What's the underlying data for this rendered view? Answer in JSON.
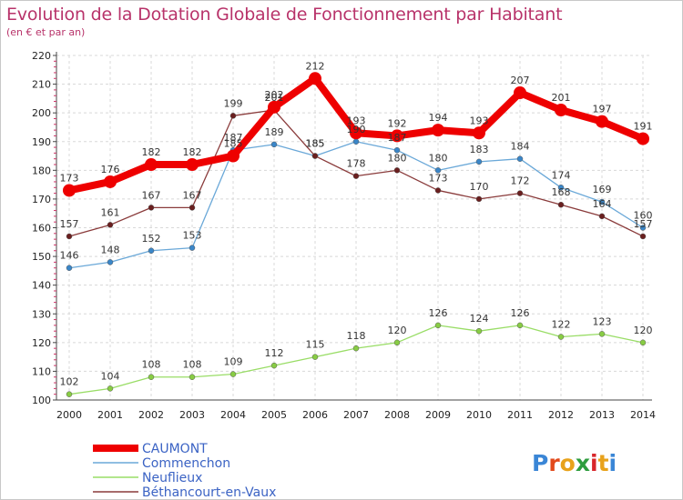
{
  "title": "Evolution de la Dotation Globale de Fonctionnement par Habitant",
  "subtitle": "(en € et par an)",
  "brand": {
    "letters": [
      "P",
      "r",
      "o",
      "x",
      "i",
      "t",
      "i"
    ],
    "colors": [
      "#3a86d6",
      "#e24a1c",
      "#e8a21b",
      "#2e9d3e",
      "#d8262b",
      "#e8a21b",
      "#3a86d6"
    ]
  },
  "chart_data": {
    "type": "line",
    "x": [
      "2000",
      "2001",
      "2002",
      "2003",
      "2004",
      "2005",
      "2006",
      "2007",
      "2008",
      "2009",
      "2010",
      "2011",
      "2012",
      "2013",
      "2014"
    ],
    "ylim": [
      100,
      220
    ],
    "yticks": [
      100,
      110,
      120,
      130,
      140,
      150,
      160,
      170,
      180,
      190,
      200,
      210,
      220
    ],
    "grid": true,
    "legend_position": "bottom-left",
    "series": [
      {
        "name": "Neuflieux",
        "color": "#99dd66",
        "marker": "#88cc44",
        "values": [
          102,
          104,
          108,
          108,
          109,
          112,
          115,
          118,
          120,
          126,
          124,
          126,
          122,
          123,
          120
        ]
      },
      {
        "name": "Commenchon",
        "color": "#6aa8d8",
        "marker": "#3a86c8",
        "values": [
          146,
          148,
          152,
          153,
          187,
          189,
          185,
          190,
          187,
          180,
          183,
          184,
          174,
          169,
          160
        ]
      },
      {
        "name": "Béthancourt-en-Vaux",
        "color": "#8a3b3b",
        "marker": "#6a1f1f",
        "values": [
          157,
          161,
          167,
          167,
          199,
          201,
          185,
          178,
          180,
          173,
          170,
          172,
          168,
          164,
          157
        ]
      },
      {
        "name": "CAUMONT",
        "color": "#ee0000",
        "marker": "#ee0000",
        "values": [
          173,
          176,
          182,
          182,
          185,
          202,
          212,
          193,
          192,
          194,
          193,
          207,
          201,
          197,
          191
        ]
      }
    ]
  }
}
